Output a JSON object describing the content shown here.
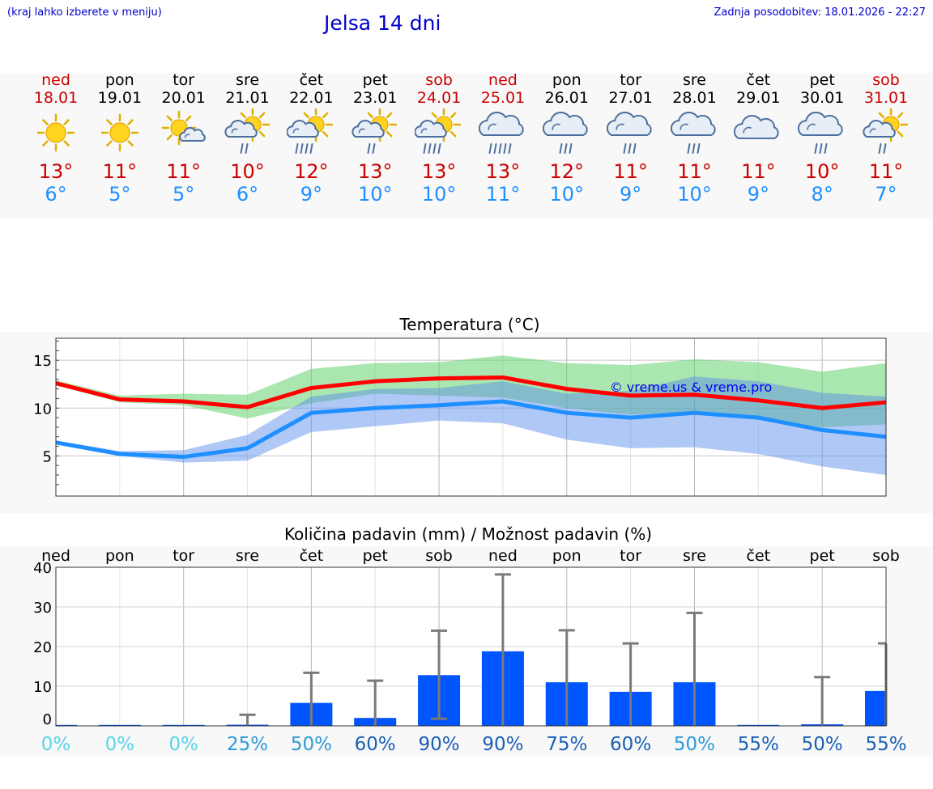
{
  "header": {
    "hint": "(kraj lahko izberete v meniju)",
    "title": "Jelsa 14 dni",
    "updated": "Zadnja posodobitev: 18.01.2026 - 22:27"
  },
  "colors": {
    "max": "#cc0000",
    "min": "#1e90ff",
    "bar": "#0055ff",
    "weekend": "#cc0000"
  },
  "days": [
    {
      "name": "ned",
      "date": "18.01",
      "max": "13°",
      "min": "6°",
      "icon": "sun-icon",
      "weekend": true
    },
    {
      "name": "pon",
      "date": "19.01",
      "max": "11°",
      "min": "5°",
      "icon": "sun-icon",
      "weekend": false
    },
    {
      "name": "tor",
      "date": "20.01",
      "max": "11°",
      "min": "5°",
      "icon": "sun-cloud-icon",
      "weekend": false
    },
    {
      "name": "sre",
      "date": "21.01",
      "max": "10°",
      "min": "6°",
      "icon": "sun-cloud-rain-icon",
      "weekend": false
    },
    {
      "name": "čet",
      "date": "22.01",
      "max": "12°",
      "min": "9°",
      "icon": "sun-cloud-heavy-rain-icon",
      "weekend": false
    },
    {
      "name": "pet",
      "date": "23.01",
      "max": "13°",
      "min": "10°",
      "icon": "sun-cloud-rain-icon",
      "weekend": false
    },
    {
      "name": "sob",
      "date": "24.01",
      "max": "13°",
      "min": "10°",
      "icon": "sun-cloud-heavy-rain-icon",
      "weekend": true
    },
    {
      "name": "ned",
      "date": "25.01",
      "max": "13°",
      "min": "11°",
      "icon": "cloud-heavy-rain-icon",
      "weekend": true
    },
    {
      "name": "pon",
      "date": "26.01",
      "max": "12°",
      "min": "10°",
      "icon": "cloud-rain-icon",
      "weekend": false
    },
    {
      "name": "tor",
      "date": "27.01",
      "max": "11°",
      "min": "9°",
      "icon": "cloud-rain-icon",
      "weekend": false
    },
    {
      "name": "sre",
      "date": "28.01",
      "max": "11°",
      "min": "10°",
      "icon": "cloud-rain-icon",
      "weekend": false
    },
    {
      "name": "čet",
      "date": "29.01",
      "max": "11°",
      "min": "9°",
      "icon": "cloud-icon",
      "weekend": false
    },
    {
      "name": "pet",
      "date": "30.01",
      "max": "10°",
      "min": "8°",
      "icon": "cloud-rain-icon",
      "weekend": false
    },
    {
      "name": "sob",
      "date": "31.01",
      "max": "11°",
      "min": "7°",
      "icon": "sun-cloud-rain-icon",
      "weekend": true
    }
  ],
  "chart_data": [
    {
      "type": "line",
      "title": "Temperatura (°C)",
      "watermark": "© vreme.us & vreme.pro",
      "x_index": [
        0,
        1,
        2,
        3,
        4,
        5,
        6,
        7,
        8,
        9,
        10,
        11,
        12,
        13
      ],
      "ylim": [
        0.8,
        17.3
      ],
      "yticks": [
        5,
        10,
        15
      ],
      "series": [
        {
          "name": "max",
          "values": [
            12.6,
            10.9,
            10.7,
            10.1,
            12.1,
            12.8,
            13.1,
            13.2,
            12.0,
            11.3,
            11.4,
            10.8,
            10.0,
            10.6
          ]
        },
        {
          "name": "min",
          "values": [
            6.4,
            5.2,
            4.9,
            5.8,
            9.5,
            10.0,
            10.3,
            10.7,
            9.5,
            9.0,
            9.5,
            9.0,
            7.7,
            7.0
          ]
        }
      ],
      "bands": [
        {
          "name": "max-range",
          "low": [
            12.4,
            10.6,
            10.3,
            8.9,
            10.5,
            11.5,
            11.3,
            11.1,
            10.0,
            9.3,
            9.6,
            8.8,
            8.0,
            8.3
          ],
          "high": [
            12.9,
            11.3,
            11.5,
            11.4,
            14.1,
            14.7,
            14.8,
            15.5,
            14.7,
            14.5,
            15.1,
            14.8,
            13.8,
            14.7
          ]
        },
        {
          "name": "min-range",
          "low": [
            6.2,
            5.0,
            4.3,
            4.5,
            7.5,
            8.1,
            8.7,
            8.4,
            6.7,
            5.8,
            5.9,
            5.2,
            3.9,
            3.0
          ],
          "high": [
            6.6,
            5.5,
            5.6,
            7.2,
            11.2,
            12.0,
            12.1,
            12.8,
            11.5,
            11.8,
            13.3,
            12.8,
            11.6,
            11.2
          ]
        }
      ]
    },
    {
      "type": "bar",
      "title": "Količina padavin (mm) / Možnost padavin (%)",
      "categories": [
        "ned",
        "pon",
        "tor",
        "sre",
        "čet",
        "pet",
        "sob",
        "ned",
        "pon",
        "tor",
        "sre",
        "čet",
        "pet",
        "sob"
      ],
      "ylim": [
        0,
        40
      ],
      "yticks": [
        0,
        10,
        20,
        30,
        40
      ],
      "values": [
        0,
        0,
        0,
        0.3,
        5.8,
        2.0,
        12.8,
        18.8,
        11.0,
        8.6,
        11.0,
        0,
        0.4,
        8.8
      ],
      "error_high": [
        0,
        0,
        0,
        2.8,
        13.4,
        11.4,
        24.0,
        38.2,
        24.1,
        20.8,
        28.5,
        0,
        12.3,
        20.8
      ],
      "error_low": [
        0,
        0,
        0,
        0,
        0,
        0,
        1.8,
        0,
        0,
        0,
        0,
        0,
        0,
        0
      ],
      "probability_labels": [
        "0%",
        "0%",
        "0%",
        "25%",
        "50%",
        "60%",
        "90%",
        "90%",
        "75%",
        "60%",
        "50%",
        "55%",
        "50%",
        "55%"
      ],
      "probability_colors": [
        "#5bd3e8",
        "#5bd3e8",
        "#5bd3e8",
        "#2c9ad8",
        "#2c9ad8",
        "#1a5fb4",
        "#1a5fb4",
        "#1a5fb4",
        "#1a5fb4",
        "#1a5fb4",
        "#2c9ad8",
        "#1a5fb4",
        "#1a5fb4",
        "#1a5fb4"
      ]
    }
  ]
}
